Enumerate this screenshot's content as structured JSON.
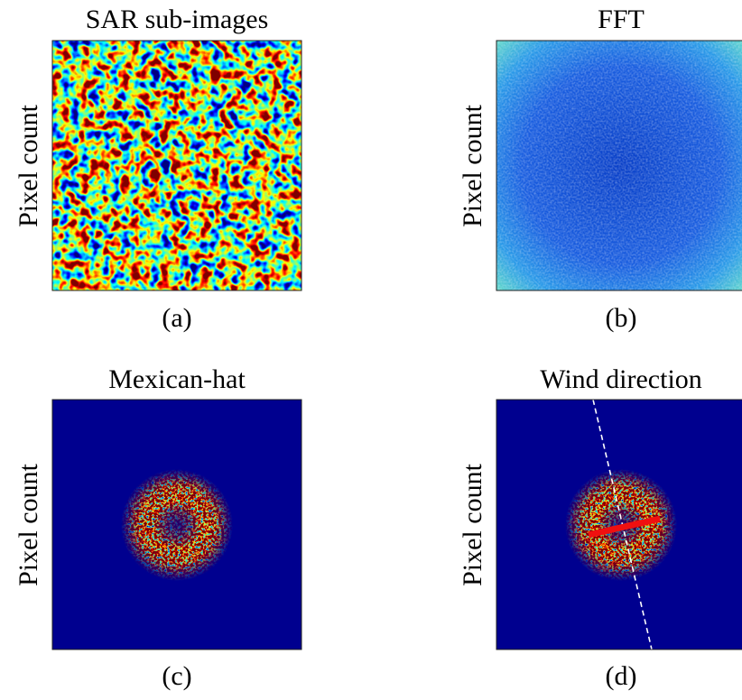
{
  "panels": [
    {
      "title": "SAR sub-images",
      "y_label": "Pixel count",
      "caption": "(a)"
    },
    {
      "title": "FFT",
      "y_label": "Pixel count",
      "caption": "(b)"
    },
    {
      "title": "Mexican-hat",
      "y_label": "Pixel count",
      "caption": "(c)"
    },
    {
      "title": "Wind direction",
      "y_label": "Pixel count",
      "caption": "(d)"
    }
  ]
}
